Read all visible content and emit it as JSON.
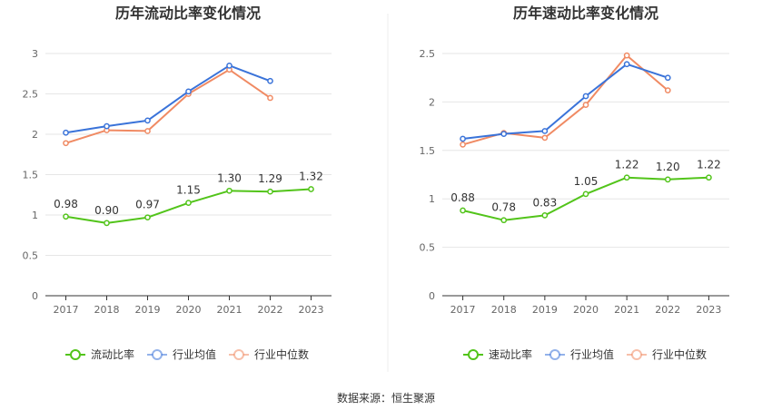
{
  "source": "数据来源：恒生聚源",
  "colors": {
    "main": "#52c41a",
    "avg": "#3a73d9",
    "median": "#f08a63",
    "grid": "#e6e6e6",
    "axis": "#333333"
  },
  "chart_data": [
    {
      "type": "line",
      "title": "历年流动比率变化情况",
      "categories": [
        "2017",
        "2018",
        "2019",
        "2020",
        "2021",
        "2022",
        "2023"
      ],
      "ylim": [
        0,
        3
      ],
      "yticks": [
        "0",
        "0.5",
        "1",
        "1.5",
        "2",
        "2.5",
        "3"
      ],
      "series": [
        {
          "name": "流动比率",
          "values": [
            0.98,
            0.9,
            0.97,
            1.15,
            1.3,
            1.29,
            1.32
          ],
          "labels": [
            "0.98",
            "0.90",
            "0.97",
            "1.15",
            "1.30",
            "1.29",
            "1.32"
          ]
        },
        {
          "name": "行业均值",
          "values": [
            2.02,
            2.1,
            2.17,
            2.53,
            2.85,
            2.66,
            null
          ]
        },
        {
          "name": "行业中位数",
          "values": [
            1.89,
            2.05,
            2.04,
            2.5,
            2.8,
            2.45,
            null
          ]
        }
      ],
      "legend": "bottom"
    },
    {
      "type": "line",
      "title": "历年速动比率变化情况",
      "categories": [
        "2017",
        "2018",
        "2019",
        "2020",
        "2021",
        "2022",
        "2023"
      ],
      "ylim": [
        0,
        2.5
      ],
      "yticks": [
        "0",
        "0.5",
        "1",
        "1.5",
        "2",
        "2.5"
      ],
      "series": [
        {
          "name": "速动比率",
          "values": [
            0.88,
            0.78,
            0.83,
            1.05,
            1.22,
            1.2,
            1.22
          ],
          "labels": [
            "0.88",
            "0.78",
            "0.83",
            "1.05",
            "1.22",
            "1.20",
            "1.22"
          ]
        },
        {
          "name": "行业均值",
          "values": [
            1.62,
            1.67,
            1.7,
            2.06,
            2.39,
            2.25,
            null
          ]
        },
        {
          "name": "行业中位数",
          "values": [
            1.56,
            1.68,
            1.63,
            1.97,
            2.48,
            2.12,
            null
          ]
        }
      ],
      "legend": "bottom"
    }
  ]
}
